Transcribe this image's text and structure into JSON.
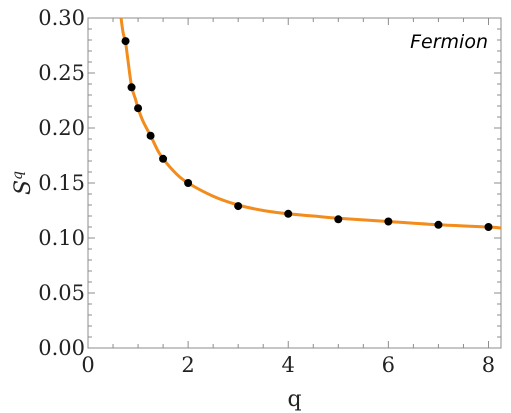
{
  "chart_data": {
    "type": "scatter",
    "annotation": "Fermion",
    "xlabel": "q",
    "ylabel_base": "S",
    "ylabel_sup": "q",
    "xlim": [
      0,
      8.25
    ],
    "ylim": [
      0,
      0.3
    ],
    "x_ticks": [
      "0",
      "2",
      "4",
      "6",
      "8"
    ],
    "y_ticks": [
      "0.00",
      "0.05",
      "0.10",
      "0.15",
      "0.20",
      "0.25",
      "0.30"
    ],
    "grid": false,
    "series": [
      {
        "kind": "points",
        "color": "#000000",
        "x": [
          0.75,
          0.87,
          1.0,
          1.25,
          1.5,
          2.0,
          3.0,
          4.0,
          5.0,
          6.0,
          7.0,
          8.0
        ],
        "y": [
          0.279,
          0.237,
          0.218,
          0.193,
          0.172,
          0.15,
          0.129,
          0.122,
          0.117,
          0.115,
          0.112,
          0.11
        ]
      },
      {
        "kind": "curve",
        "color": "#f28c1c",
        "x": [
          0.66,
          0.68,
          0.7,
          0.72,
          0.75,
          0.8,
          0.87,
          0.95,
          1.0,
          1.1,
          1.25,
          1.4,
          1.5,
          1.75,
          2.0,
          2.5,
          3.0,
          3.5,
          4.0,
          4.5,
          5.0,
          6.0,
          7.0,
          8.0,
          8.25
        ],
        "y": [
          0.3,
          0.293,
          0.287,
          0.283,
          0.278,
          0.261,
          0.238,
          0.226,
          0.218,
          0.206,
          0.193,
          0.179,
          0.172,
          0.159,
          0.15,
          0.138,
          0.13,
          0.125,
          0.122,
          0.12,
          0.118,
          0.115,
          0.112,
          0.11,
          0.109
        ]
      }
    ]
  }
}
